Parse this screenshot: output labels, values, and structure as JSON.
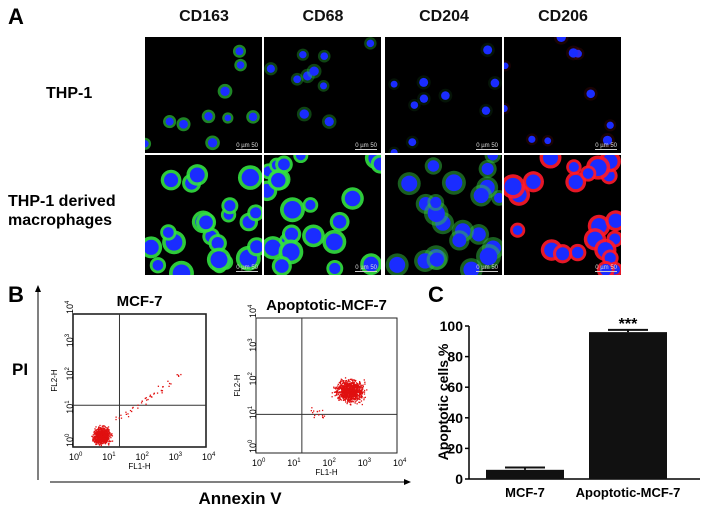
{
  "panels": {
    "a": "A",
    "b": "B",
    "c": "C"
  },
  "markers": [
    "CD163",
    "CD68",
    "CD204",
    "CD206"
  ],
  "rows": [
    {
      "label": "THP-1"
    },
    {
      "label_line1": "THP-1 derived",
      "label_line2": "macrophages"
    }
  ],
  "scale_bar": "0   µm 50",
  "stain_colors": {
    "nucleus": "#1a2cff",
    "CD163": "#33e040",
    "CD68": "#33e040",
    "CD204": "#33c040",
    "CD206": "#ff1a2a"
  },
  "flow": {
    "y_axis_label": "PI",
    "x_axis_label": "Annexin V",
    "plots": [
      {
        "title": "MCF-7",
        "xlabel": "FL1-H",
        "ylabel": "FL2-H"
      },
      {
        "title": "Apoptotic-MCF-7",
        "xlabel": "FL1-H",
        "ylabel": "FL2-H"
      }
    ],
    "scale": "log",
    "range": [
      1,
      10000
    ],
    "ticks": [
      "10^0",
      "10^1",
      "10^2",
      "10^3",
      "10^4"
    ],
    "dot_color": "#e01010"
  },
  "chart_data": {
    "type": "bar",
    "categories": [
      "MCF-7",
      "Apoptotic-MCF-7"
    ],
    "values": [
      6,
      96
    ],
    "errors": [
      1.5,
      1.5
    ],
    "ylabel": "Apoptotic cells %",
    "ylim": [
      0,
      100
    ],
    "yticks": [
      "0",
      "20",
      "40",
      "60",
      "80",
      "100"
    ],
    "annotation": "***",
    "bar_color": "#111111"
  }
}
